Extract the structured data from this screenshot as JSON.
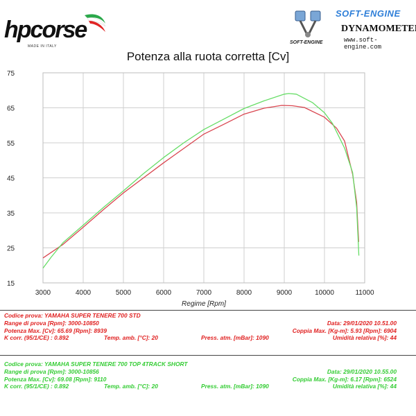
{
  "header": {
    "left_logo": {
      "brand": "hpcorse",
      "tagline": "MADE IN ITALY"
    },
    "right_logo": {
      "brand": "SOFT-ENGINE",
      "title": "DYNAMOMETERS",
      "website": "www.soft-engine.com",
      "small_brand": "SOFT-ENGINE"
    }
  },
  "chart_data": {
    "type": "line",
    "title": "Potenza alla ruota corretta [Cv]",
    "xlabel": "Regime [Rpm]",
    "ylabel": "",
    "xlim": [
      3000,
      11000
    ],
    "ylim": [
      15,
      75
    ],
    "x_ticks": [
      3000,
      4000,
      5000,
      6000,
      7000,
      8000,
      9000,
      10000,
      11000
    ],
    "y_ticks": [
      15,
      25,
      35,
      45,
      55,
      65,
      75
    ],
    "grid": true,
    "series": [
      {
        "name": "YAMAHA SUPER TENERE 700 STD",
        "color": "#d9454f",
        "points": [
          [
            3000,
            22.1
          ],
          [
            3500,
            26.0
          ],
          [
            4000,
            30.9
          ],
          [
            4500,
            35.9
          ],
          [
            5000,
            40.7
          ],
          [
            5500,
            45.0
          ],
          [
            6000,
            49.3
          ],
          [
            6500,
            53.4
          ],
          [
            7000,
            57.5
          ],
          [
            7500,
            60.3
          ],
          [
            8000,
            63.2
          ],
          [
            8500,
            64.9
          ],
          [
            8939,
            65.69
          ],
          [
            9200,
            65.6
          ],
          [
            9500,
            65.1
          ],
          [
            10000,
            62.3
          ],
          [
            10300,
            59.2
          ],
          [
            10500,
            55.5
          ],
          [
            10700,
            46.0
          ],
          [
            10800,
            38.0
          ],
          [
            10850,
            26.7
          ]
        ]
      },
      {
        "name": "YAMAHA SUPER TENERE 700 TOP 4TRACK SHORT",
        "color": "#66dd66",
        "points": [
          [
            3000,
            19.2
          ],
          [
            3200,
            22.3
          ],
          [
            3500,
            26.5
          ],
          [
            4000,
            31.5
          ],
          [
            4500,
            36.5
          ],
          [
            5000,
            41.3
          ],
          [
            5500,
            46.2
          ],
          [
            6000,
            50.8
          ],
          [
            6500,
            55.0
          ],
          [
            7000,
            58.8
          ],
          [
            7500,
            61.8
          ],
          [
            8000,
            64.8
          ],
          [
            8500,
            67.0
          ],
          [
            9000,
            68.9
          ],
          [
            9110,
            69.08
          ],
          [
            9300,
            68.9
          ],
          [
            9700,
            66.5
          ],
          [
            10000,
            63.6
          ],
          [
            10200,
            60.5
          ],
          [
            10500,
            53.5
          ],
          [
            10700,
            46.5
          ],
          [
            10800,
            36.5
          ],
          [
            10856,
            22.8
          ]
        ]
      }
    ]
  },
  "tests": [
    {
      "color": "#e02020",
      "codice": "Codice prova: YAMAHA SUPER TENERE 700 STD",
      "range": "Range di prova [Rpm]: 3000-10850",
      "data": "Data: 29/01/2020   10.51.00",
      "potenza": "Potenza Max. [Cv]: 65.69   [Rpm]: 8939",
      "coppia": "Coppia Max. [Kg-m]: 5.93   [Rpm]: 6904",
      "kcorr": "K corr. (95/1/CE) : 0.892",
      "temp": "Temp. amb. [°C]: 20",
      "press": "Press. atm. [mBar]: 1090",
      "umid": "Umidità relativa [%]: 44"
    },
    {
      "color": "#33cc33",
      "codice": "Codice prova: YAMAHA SUPER TENERE 700 TOP 4TRACK SHORT",
      "range": "Range di prova [Rpm]: 3000-10856",
      "data": "Data: 29/01/2020   10.55.00",
      "potenza": "Potenza Max. [Cv]: 69.08   [Rpm]: 9110",
      "coppia": "Coppia Max. [Kg-m]: 6.17   [Rpm]: 6524",
      "kcorr": "K corr. (95/1/CE) : 0.892",
      "temp": "Temp. amb. [°C]: 20",
      "press": "Press. atm. [mBar]: 1090",
      "umid": "Umidità relativa [%]: 44"
    }
  ]
}
